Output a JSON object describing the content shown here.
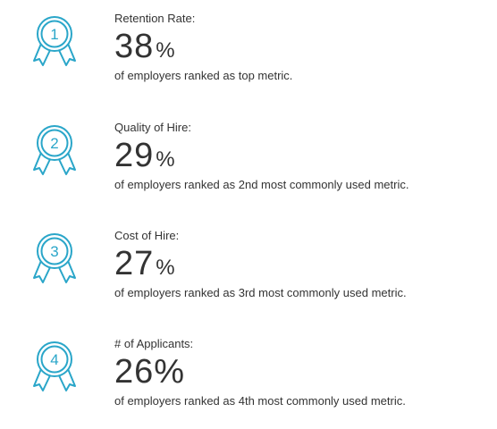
{
  "accent_color": "#2aa6c9",
  "metrics": [
    {
      "rank": "1",
      "icon": "ribbon-award-icon",
      "label": "Retention Rate:",
      "value": "38",
      "unit": "%",
      "description": "of employers ranked as top metric."
    },
    {
      "rank": "2",
      "icon": "ribbon-award-icon",
      "label": "Quality of Hire:",
      "value": "29",
      "unit": "%",
      "description": "of employers ranked as 2nd most commonly used metric."
    },
    {
      "rank": "3",
      "icon": "ribbon-award-icon",
      "label": "Cost of Hire:",
      "value": "27",
      "unit": "%",
      "description": "of employers ranked as 3rd most commonly used metric."
    },
    {
      "rank": "4",
      "icon": "ribbon-award-icon",
      "label": "# of Applicants:",
      "value": "26",
      "unit": "%",
      "description": "of employers ranked as 4th most commonly used metric."
    }
  ]
}
